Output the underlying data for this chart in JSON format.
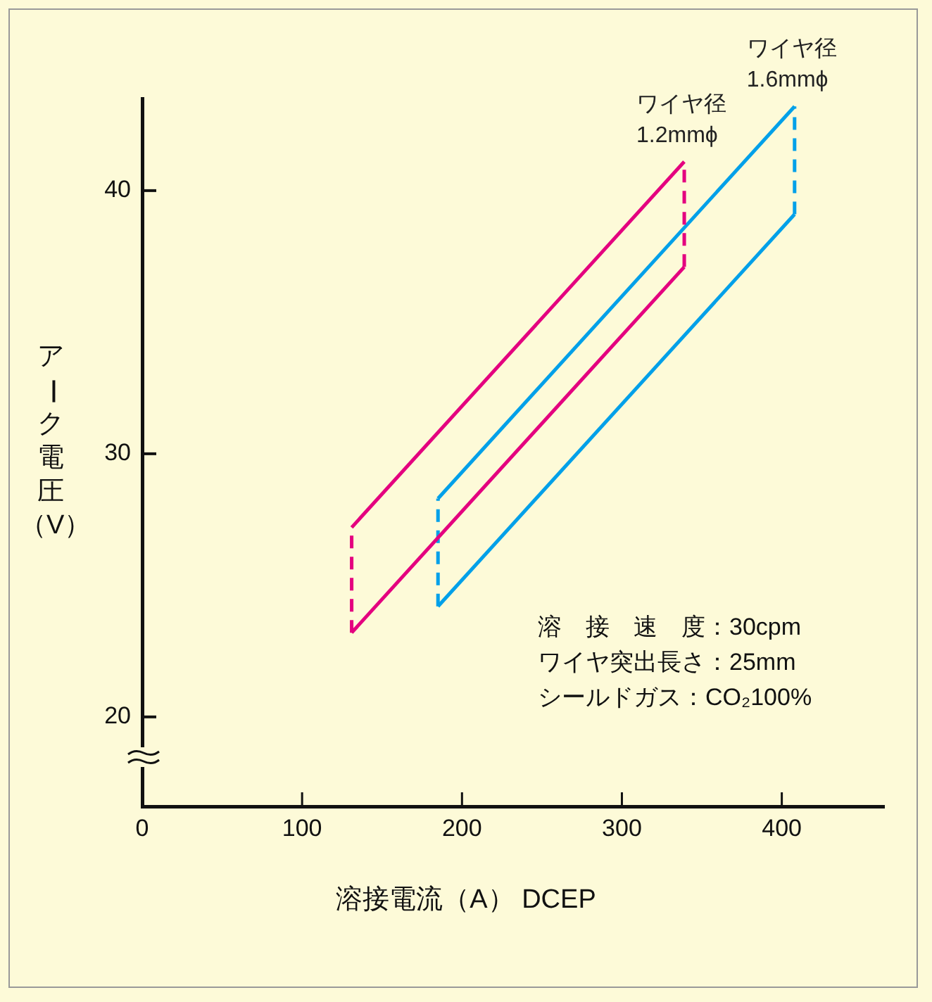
{
  "chart_data": {
    "type": "line",
    "xlabel": "溶接電流（A） DCEP",
    "ylabel": "アーク電圧（V）",
    "xlim": [
      0,
      464
    ],
    "xticks": [
      0,
      100,
      200,
      300,
      400
    ],
    "ylim": [
      16.6,
      43.5
    ],
    "yticks": [
      20,
      30,
      40
    ],
    "grid": false,
    "series": [
      {
        "color": "#e4007f",
        "x": [
          131,
          339
        ],
        "values": [
          27.2,
          41.1
        ],
        "line_style": "solid"
      },
      {
        "color": "#e4007f",
        "x": [
          131,
          339
        ],
        "values": [
          23.2,
          37.1
        ],
        "line_style": "solid"
      },
      {
        "color": "#e4007f",
        "x": [
          131,
          131
        ],
        "values": [
          23.2,
          27.2
        ],
        "line_style": "dashed"
      },
      {
        "name": "ワイヤ径\n1.2mmϕ",
        "color": "#e4007f",
        "x": [
          339,
          339
        ],
        "values": [
          37.1,
          41.1
        ],
        "line_style": "dashed"
      },
      {
        "color": "#00a0e9",
        "x": [
          185,
          408
        ],
        "values": [
          28.3,
          43.2
        ],
        "line_style": "solid"
      },
      {
        "color": "#00a0e9",
        "x": [
          185,
          408
        ],
        "values": [
          24.2,
          39.1
        ],
        "line_style": "solid"
      },
      {
        "color": "#00a0e9",
        "x": [
          185,
          185
        ],
        "values": [
          24.2,
          28.3
        ],
        "line_style": "dashed"
      },
      {
        "name": "ワイヤ径\n1.6mmϕ",
        "color": "#00a0e9",
        "x": [
          408,
          408
        ],
        "values": [
          39.1,
          43.2
        ],
        "line_style": "dashed"
      }
    ],
    "annotations": [
      "溶　接　速　度：30cpm",
      "ワイヤ突出長さ：25mm",
      "シールドガス：CO₂100%"
    ]
  }
}
